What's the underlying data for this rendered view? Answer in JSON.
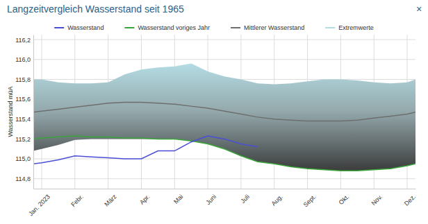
{
  "chart_data": {
    "type": "line",
    "title": "Langzeitvergleich Wasserstand seit 1965",
    "y_label": "Wasserstand müA",
    "x": [
      -0.25,
      0,
      0.5,
      1,
      1.5,
      2,
      2.5,
      3,
      3.5,
      4,
      4.5,
      5,
      5.5,
      6,
      6.5,
      7,
      7.5,
      8,
      8.5,
      9,
      9.5,
      10,
      10.5,
      11,
      11.25
    ],
    "series": [
      {
        "name": "Wasserstand",
        "color": "#4a4ed6",
        "type": "line",
        "values": [
          114.95,
          114.96,
          114.99,
          115.03,
          115.02,
          115.01,
          115.0,
          115.0,
          115.08,
          115.08,
          115.17,
          115.23,
          115.2,
          115.15,
          115.12,
          null,
          null,
          null,
          null,
          null,
          null,
          null,
          null,
          null,
          null
        ]
      },
      {
        "name": "Wasserstand voriges Jahr",
        "color": "#3aa53a",
        "type": "line",
        "values": [
          115.2,
          115.21,
          115.22,
          115.23,
          115.22,
          115.22,
          115.21,
          115.21,
          115.2,
          115.2,
          115.18,
          115.15,
          115.1,
          115.03,
          114.97,
          114.95,
          114.92,
          114.9,
          114.89,
          114.88,
          114.88,
          114.89,
          114.9,
          114.93,
          114.95
        ]
      },
      {
        "name": "Mittlerer Wasserstand",
        "color": "#6e6e6e",
        "type": "line",
        "values": [
          115.47,
          115.48,
          115.5,
          115.52,
          115.54,
          115.56,
          115.57,
          115.57,
          115.56,
          115.55,
          115.53,
          115.51,
          115.48,
          115.45,
          115.42,
          115.4,
          115.39,
          115.38,
          115.38,
          115.38,
          115.39,
          115.41,
          115.43,
          115.45,
          115.47
        ]
      },
      {
        "name": "Extremwerte",
        "color": "#b4dce4",
        "type": "area",
        "values": [
          115.8,
          115.8,
          115.77,
          115.76,
          115.76,
          115.77,
          115.85,
          115.9,
          115.92,
          115.93,
          115.96,
          115.88,
          115.83,
          115.8,
          115.76,
          115.75,
          115.76,
          115.78,
          115.8,
          115.8,
          115.79,
          115.77,
          115.76,
          115.77,
          115.8
        ],
        "low": [
          115.08,
          115.1,
          115.14,
          115.19,
          115.2,
          115.2,
          115.2,
          115.2,
          115.2,
          115.2,
          115.18,
          115.15,
          115.1,
          115.03,
          114.97,
          114.95,
          114.92,
          114.9,
          114.89,
          114.88,
          114.88,
          114.89,
          114.9,
          114.93,
          114.95
        ]
      }
    ],
    "xlim": [
      -0.25,
      11.25
    ],
    "xticks": [
      {
        "value": 0,
        "label": "Jan. 2023"
      },
      {
        "value": 1,
        "label": "Febr."
      },
      {
        "value": 2,
        "label": "März"
      },
      {
        "value": 3,
        "label": "Apr."
      },
      {
        "value": 4,
        "label": "Mai"
      },
      {
        "value": 5,
        "label": "Juni"
      },
      {
        "value": 6,
        "label": "Juli"
      },
      {
        "value": 7,
        "label": "Aug."
      },
      {
        "value": 8,
        "label": "Sept."
      },
      {
        "value": 9,
        "label": "Okt."
      },
      {
        "value": 10,
        "label": "Nov."
      },
      {
        "value": 11,
        "label": "Dez."
      }
    ],
    "ylim": [
      114.7,
      116.25
    ],
    "yticks": [
      {
        "value": 114.8,
        "label": "114,8"
      },
      {
        "value": 115.0,
        "label": "115,0"
      },
      {
        "value": 115.2,
        "label": "115,2"
      },
      {
        "value": 115.4,
        "label": "115,4"
      },
      {
        "value": 115.6,
        "label": "115,6"
      },
      {
        "value": 115.8,
        "label": "115,8"
      },
      {
        "value": 116.0,
        "label": "116,0"
      },
      {
        "value": 116.2,
        "label": "116,2"
      }
    ],
    "grid": true
  },
  "dialog": {
    "close": "×"
  }
}
